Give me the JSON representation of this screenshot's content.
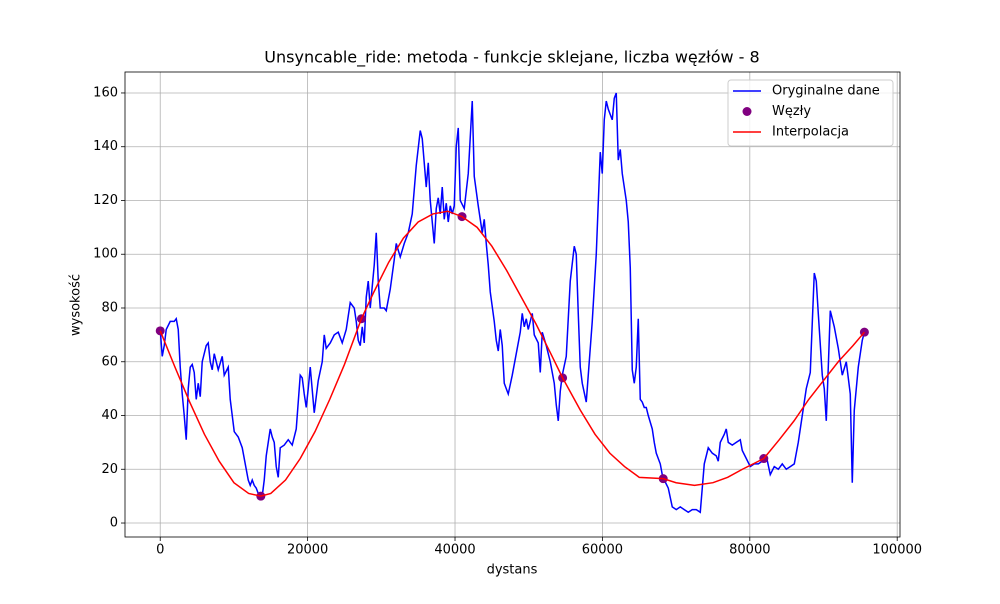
{
  "chart_data": {
    "type": "line",
    "title": "Unsyncable_ride: metoda - funkcje sklejane, liczba węzłów - 8",
    "xlabel": "dystans",
    "ylabel": "wysokość",
    "xlim": [
      -4780,
      100380
    ],
    "ylim": [
      -5.2,
      167.8
    ],
    "xticks": [
      0,
      20000,
      40000,
      60000,
      80000,
      100000
    ],
    "yticks": [
      0,
      20,
      40,
      60,
      80,
      100,
      120,
      140,
      160
    ],
    "grid": true,
    "legend": "upper right",
    "series": [
      {
        "name": "Oryginalne dane",
        "color": "#0000ff",
        "kind": "line",
        "x": [
          0,
          271,
          543,
          814,
          1357,
          1900,
          2171,
          2443,
          2714,
          2985,
          3257,
          3528,
          3800,
          4071,
          4342,
          4614,
          4885,
          5157,
          5428,
          5699,
          6242,
          6514,
          6785,
          7056,
          7328,
          7871,
          8413,
          8685,
          9228,
          9499,
          9770,
          10042,
          10585,
          11127,
          11670,
          11942,
          12213,
          12484,
          12756,
          13027,
          13299,
          13841,
          14113,
          14384,
          14656,
          14927,
          15198,
          15470,
          15741,
          16013,
          16284,
          16827,
          17370,
          17912,
          18455,
          18727,
          18998,
          19269,
          19541,
          19812,
          20084,
          20355,
          20898,
          21441,
          21983,
          22255,
          22526,
          23069,
          23612,
          24155,
          24697,
          25240,
          25783,
          26326,
          26597,
          26869,
          27140,
          27411,
          27683,
          27954,
          28226,
          28497,
          29040,
          29311,
          29583,
          29854,
          30397,
          30668,
          31211,
          31754,
          32025,
          32568,
          33111,
          33654,
          34196,
          34739,
          35282,
          35553,
          36096,
          36368,
          36639,
          37182,
          37453,
          37725,
          37996,
          38267,
          38539,
          38810,
          39082,
          39353,
          39624,
          39896,
          40167,
          40439,
          40710,
          41253,
          41796,
          42338,
          42610,
          43153,
          43695,
          43967,
          44238,
          44510,
          44781,
          45324,
          45595,
          45867,
          46138,
          46409,
          46681,
          46952,
          47224,
          47766,
          48309,
          48852,
          49123,
          49395,
          49666,
          49938,
          50480,
          50752,
          51295,
          51566,
          51837,
          52380,
          52923,
          53466,
          53737,
          54009,
          54280,
          54551,
          55094,
          55637,
          56180,
          56451,
          56723,
          56994,
          57265,
          57808,
          58080,
          58622,
          59165,
          59708,
          59979,
          60251,
          60522,
          60794,
          61336,
          61608,
          61879,
          62151,
          62422,
          62693,
          63236,
          63508,
          63779,
          64050,
          64322,
          64593,
          64865,
          65136,
          65407,
          65679,
          65950,
          66222,
          66764,
          67036,
          67307,
          67850,
          68121,
          68393,
          68936,
          69478,
          70021,
          70564,
          71107,
          71650,
          72192,
          72735,
          73278,
          73821,
          74364,
          74906,
          75449,
          75721,
          75992,
          76535,
          76806,
          77078,
          77620,
          78163,
          78706,
          78977,
          79520,
          80063,
          80606,
          81149,
          81691,
          82234,
          82777,
          83320,
          83863,
          84405,
          84948,
          85491,
          86034,
          86577,
          87119,
          87662,
          88205,
          88748,
          89019,
          89291,
          89833,
          90105,
          90376,
          90648,
          90919,
          91462,
          92005,
          92547,
          93090,
          93633,
          93904,
          94176,
          94719,
          95261,
          95550
        ],
        "values": [
          72,
          62,
          66,
          72,
          75,
          75,
          76,
          72,
          58,
          48,
          40,
          31,
          50,
          58,
          59,
          56,
          46,
          52,
          47,
          60,
          66,
          67,
          60,
          57,
          63,
          57,
          62,
          55,
          58,
          46,
          40,
          34,
          32,
          28,
          20,
          16,
          14,
          16,
          14,
          13,
          11,
          10,
          16,
          25,
          30,
          35,
          32,
          30,
          21,
          17,
          28,
          29,
          31,
          29,
          35,
          45,
          55,
          54,
          48,
          43,
          50,
          58,
          41,
          53,
          60,
          70,
          65,
          67,
          70,
          71,
          67,
          72,
          82,
          80,
          75,
          68,
          66,
          73,
          67,
          84,
          90,
          80,
          96,
          108,
          90,
          80,
          80,
          79,
          87,
          98,
          104,
          99,
          104,
          108,
          115,
          133,
          146,
          143,
          125,
          134,
          120,
          104,
          117,
          121,
          115,
          125,
          113,
          119,
          112,
          118,
          115,
          118,
          140,
          147,
          120,
          117,
          130,
          157,
          129,
          118,
          108,
          113,
          104,
          96,
          86,
          75,
          68,
          64,
          72,
          66,
          52,
          50,
          48,
          55,
          63,
          71,
          78,
          73,
          76,
          72,
          78,
          70,
          67,
          56,
          71,
          66,
          60,
          52,
          44,
          38,
          49,
          55,
          62,
          90,
          103,
          100,
          78,
          58,
          52,
          45,
          55,
          75,
          100,
          138,
          130,
          150,
          157,
          154,
          150,
          158,
          160,
          135,
          139,
          130,
          120,
          112,
          95,
          57,
          52,
          58,
          76,
          46,
          45,
          43,
          43,
          40,
          35,
          30,
          26,
          22,
          18,
          16,
          13,
          6,
          5,
          6,
          5,
          4,
          5,
          5,
          4,
          22,
          28,
          26,
          25,
          23,
          30,
          33,
          35,
          30,
          29,
          30,
          31,
          27,
          24,
          21,
          22,
          22,
          23,
          25,
          18,
          21,
          20,
          22,
          20,
          21,
          22,
          30,
          40,
          50,
          56,
          93,
          90,
          78,
          55,
          50,
          38,
          58,
          79,
          73,
          65,
          55,
          60,
          48,
          15,
          42,
          58,
          68,
          71
        ]
      },
      {
        "name": "Węzły",
        "color": "#800080",
        "kind": "scatter",
        "x": [
          0,
          13650,
          27300,
          40950,
          54600,
          68250,
          81900,
          95550
        ],
        "values": [
          71.5,
          10,
          76,
          114,
          54,
          16.5,
          24,
          71
        ]
      },
      {
        "name": "Interpolacja",
        "color": "#ff0000",
        "kind": "line",
        "x": [
          0,
          2000,
          4000,
          6000,
          8000,
          10000,
          12000,
          13650,
          15000,
          17000,
          19000,
          21000,
          23000,
          25000,
          27300,
          29000,
          31000,
          33000,
          35000,
          37000,
          39000,
          40950,
          43000,
          45000,
          47000,
          49000,
          51000,
          53000,
          54600,
          57000,
          59000,
          61000,
          63000,
          65000,
          68250,
          70000,
          72500,
          75000,
          77000,
          79000,
          81900,
          84000,
          86000,
          88000,
          90000,
          92000,
          94000,
          95550
        ],
        "values": [
          71.5,
          58,
          45,
          33,
          23,
          15,
          11,
          10,
          11,
          16,
          24,
          34,
          46,
          59,
          76,
          86,
          97,
          106,
          112,
          115,
          116,
          114,
          110,
          103,
          94,
          84,
          74,
          63,
          54,
          42,
          33,
          26,
          21,
          17,
          16.5,
          15,
          14,
          15,
          17,
          20,
          24,
          31,
          38,
          46,
          53,
          60,
          66,
          71
        ]
      }
    ]
  }
}
